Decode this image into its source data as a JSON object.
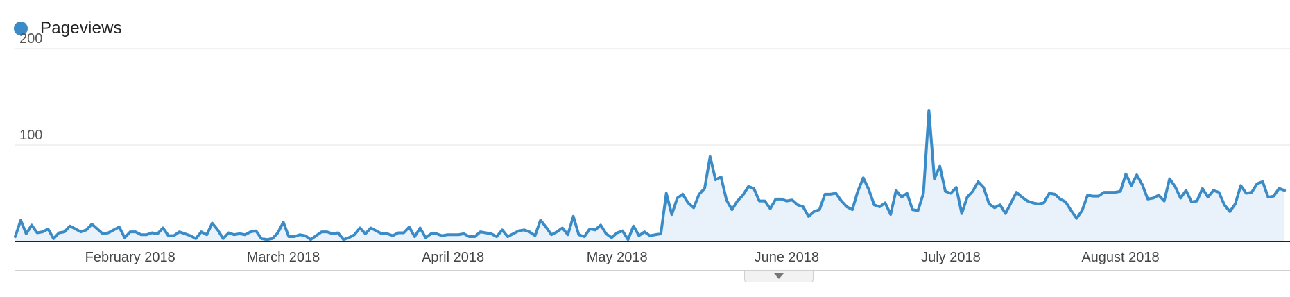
{
  "legend": {
    "label": "Pageviews",
    "color": "#3a8bc6"
  },
  "colors": {
    "line": "#3a8bc6",
    "area": "#e9f1fb",
    "grid": "#e3e3e3",
    "baseline": "#222222"
  },
  "chart_data": {
    "type": "area",
    "title": "",
    "xlabel": "",
    "ylabel": "",
    "ylim": [
      0,
      200
    ],
    "yticks": [
      100,
      200
    ],
    "grid": true,
    "legend_position": "top-left",
    "x_start": "2018-01-11",
    "x_end": "2018-09-01",
    "x_tick_labels": [
      {
        "label": "February 2018",
        "date": "2018-02-01"
      },
      {
        "label": "March 2018",
        "date": "2018-03-01"
      },
      {
        "label": "April 2018",
        "date": "2018-04-01"
      },
      {
        "label": "May 2018",
        "date": "2018-05-01"
      },
      {
        "label": "June 2018",
        "date": "2018-06-01"
      },
      {
        "label": "July 2018",
        "date": "2018-07-01"
      },
      {
        "label": "August 2018",
        "date": "2018-08-01"
      }
    ],
    "series": [
      {
        "name": "Pageviews",
        "values": [
          5,
          22,
          8,
          17,
          9,
          10,
          13,
          3,
          9,
          10,
          16,
          13,
          10,
          12,
          18,
          13,
          8,
          9,
          12,
          15,
          4,
          10,
          10,
          7,
          7,
          9,
          8,
          14,
          6,
          6,
          10,
          8,
          6,
          3,
          10,
          7,
          19,
          12,
          3,
          9,
          7,
          8,
          7,
          10,
          11,
          3,
          2,
          3,
          9,
          20,
          5,
          5,
          7,
          6,
          2,
          6,
          10,
          10,
          8,
          9,
          2,
          4,
          7,
          14,
          8,
          14,
          11,
          8,
          8,
          6,
          9,
          9,
          15,
          5,
          14,
          4,
          8,
          8,
          6,
          7,
          7,
          7,
          8,
          5,
          5,
          10,
          9,
          8,
          5,
          12,
          5,
          8,
          11,
          12,
          10,
          6,
          22,
          15,
          7,
          10,
          14,
          7,
          26,
          7,
          5,
          13,
          12,
          17,
          8,
          4,
          9,
          11,
          2,
          16,
          6,
          10,
          6,
          7,
          8,
          50,
          28,
          45,
          49,
          40,
          35,
          49,
          55,
          88,
          64,
          67,
          43,
          33,
          42,
          48,
          57,
          55,
          42,
          42,
          34,
          44,
          44,
          42,
          43,
          38,
          36,
          26,
          31,
          33,
          49,
          49,
          50,
          42,
          36,
          33,
          52,
          66,
          54,
          38,
          36,
          40,
          28,
          53,
          46,
          50,
          33,
          32,
          50,
          136,
          65,
          78,
          52,
          50,
          56,
          29,
          46,
          52,
          62,
          56,
          39,
          35,
          38,
          29,
          40,
          51,
          46,
          42,
          40,
          39,
          40,
          50,
          49,
          44,
          41,
          32,
          24,
          32,
          48,
          47,
          47,
          51,
          51,
          51,
          52,
          70,
          58,
          69,
          59,
          44,
          45,
          48,
          42,
          65,
          57,
          45,
          53,
          41,
          42,
          55,
          46,
          53,
          51,
          38,
          31,
          39,
          58,
          50,
          51,
          60,
          62,
          46,
          47,
          55,
          53
        ]
      }
    ]
  },
  "expander": {
    "icon": "triangle-down-icon"
  }
}
